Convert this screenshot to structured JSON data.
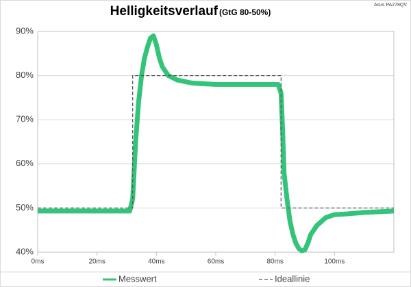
{
  "chart_data": {
    "type": "line",
    "title": "Helligkeitsverlauf",
    "subtitle": "(GtG 80-50%)",
    "annotation": "Asus PA278QV",
    "xlim": [
      0,
      120
    ],
    "xticks": [
      {
        "value": 0,
        "label": "0ms"
      },
      {
        "value": 20,
        "label": "20ms"
      },
      {
        "value": 40,
        "label": "40ms"
      },
      {
        "value": 60,
        "label": "60ms"
      },
      {
        "value": 80,
        "label": "80ms"
      },
      {
        "value": 100,
        "label": "100ms"
      }
    ],
    "ylim": [
      40,
      90
    ],
    "yticks": [
      {
        "value": 40,
        "label": "40%"
      },
      {
        "value": 50,
        "label": "50%"
      },
      {
        "value": 60,
        "label": "60%"
      },
      {
        "value": 70,
        "label": "70%"
      },
      {
        "value": 80,
        "label": "80%"
      },
      {
        "value": 90,
        "label": "90%"
      }
    ],
    "grid": true,
    "legend": "bottom",
    "series": [
      {
        "name": "Messwert",
        "color": "#33c47a",
        "dash": false,
        "x": [
          0,
          10,
          20,
          31,
          32,
          33,
          34,
          35,
          36,
          37,
          38,
          39,
          40,
          41,
          42,
          44,
          47,
          52,
          60,
          70,
          81,
          82,
          82.5,
          83,
          84,
          85,
          86,
          87,
          88,
          89,
          90,
          91,
          92,
          94,
          97,
          100,
          105,
          110,
          120
        ],
        "values": [
          49.3,
          49.3,
          49.3,
          49.3,
          52,
          65,
          74,
          80,
          84,
          86.5,
          88.5,
          89,
          87,
          84,
          82,
          80,
          79,
          78.3,
          78,
          78,
          78,
          76,
          68,
          58,
          52,
          47,
          44,
          42,
          40.8,
          40.3,
          40.5,
          42,
          44,
          46,
          47.8,
          48.5,
          48.7,
          49,
          49.3
        ]
      },
      {
        "name": "Ideallinie",
        "color": "#595959",
        "dash": true,
        "x": [
          0,
          32,
          32,
          82,
          82,
          120
        ],
        "values": [
          50,
          50,
          80,
          80,
          50,
          50
        ]
      }
    ]
  }
}
